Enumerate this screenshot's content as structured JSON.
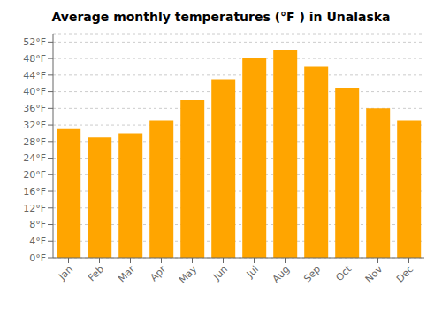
{
  "chart_data": {
    "type": "bar",
    "title": "Average monthly temperatures (°F ) in Unalaska",
    "categories": [
      "Jan",
      "Feb",
      "Mar",
      "Apr",
      "May",
      "Jun",
      "Jul",
      "Aug",
      "Sep",
      "Oct",
      "Nov",
      "Dec"
    ],
    "values": [
      31,
      29,
      30,
      33,
      38,
      43,
      48,
      50,
      46,
      41,
      36,
      33
    ],
    "color": "#FFA500",
    "ylim": [
      0,
      54
    ],
    "yticks": [
      {
        "value": 0,
        "label": "0°F"
      },
      {
        "value": 4,
        "label": "4°F"
      },
      {
        "value": 8,
        "label": "8°F"
      },
      {
        "value": 12,
        "label": "12°F"
      },
      {
        "value": 16,
        "label": "16°F"
      },
      {
        "value": 20,
        "label": "20°F"
      },
      {
        "value": 24,
        "label": "24°F"
      },
      {
        "value": 28,
        "label": "28°F"
      },
      {
        "value": 32,
        "label": "32°F"
      },
      {
        "value": 36,
        "label": "36°F"
      },
      {
        "value": 40,
        "label": "40°F"
      },
      {
        "value": 44,
        "label": "44°F"
      },
      {
        "value": 48,
        "label": "48°F"
      },
      {
        "value": 52,
        "label": "52°F"
      }
    ],
    "grid": true
  }
}
